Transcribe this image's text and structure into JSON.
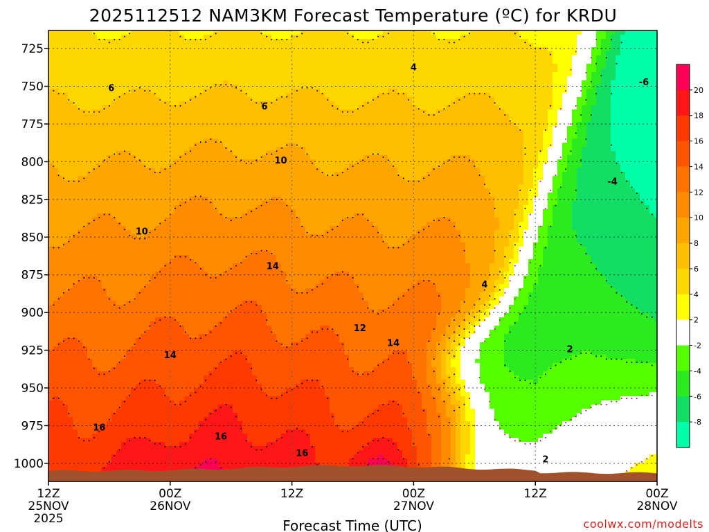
{
  "chart_data": {
    "type": "heatmap",
    "subtype": "time-height filled contour (temperature)",
    "title": "2025112512 NAM3KM Forecast Temperature (ºC) for KRDU",
    "xlabel": "Forecast Time (UTC)",
    "ylabel": "",
    "credit": "coolwx.com/modelts",
    "x_range_hours": [
      0,
      60
    ],
    "x_ticks": [
      {
        "h": 0,
        "line1": "12Z",
        "line2": "25NOV",
        "line3": "2025"
      },
      {
        "h": 12,
        "line1": "00Z",
        "line2": "26NOV",
        "line3": ""
      },
      {
        "h": 24,
        "line1": "12Z",
        "line2": "",
        "line3": ""
      },
      {
        "h": 36,
        "line1": "00Z",
        "line2": "27NOV",
        "line3": ""
      },
      {
        "h": 48,
        "line1": "12Z",
        "line2": "",
        "line3": ""
      },
      {
        "h": 60,
        "line1": "00Z",
        "line2": "28NOV",
        "line3": ""
      }
    ],
    "y_range_hpa": [
      1012,
      713
    ],
    "y_ticks": [
      "725",
      "750",
      "775",
      "800",
      "825",
      "850",
      "875",
      "900",
      "925",
      "950",
      "975",
      "1000"
    ],
    "colorbar": {
      "labels": [
        "20",
        "18",
        "16",
        "14",
        "12",
        "10",
        "8",
        "6",
        "4",
        "2",
        "-2",
        "-4",
        "-6",
        "-8"
      ],
      "levels": [
        {
          "lo": 20,
          "hi": 22,
          "color": "#ff0055"
        },
        {
          "lo": 18,
          "hi": 20,
          "color": "#ff1717"
        },
        {
          "lo": 16,
          "hi": 18,
          "color": "#ff3a00"
        },
        {
          "lo": 14,
          "hi": 16,
          "color": "#ff5500"
        },
        {
          "lo": 12,
          "hi": 14,
          "color": "#ff7300"
        },
        {
          "lo": 10,
          "hi": 12,
          "color": "#ff8c00"
        },
        {
          "lo": 8,
          "hi": 10,
          "color": "#ffa500"
        },
        {
          "lo": 6,
          "hi": 8,
          "color": "#ffbf00"
        },
        {
          "lo": 4,
          "hi": 6,
          "color": "#ffd700"
        },
        {
          "lo": 2,
          "hi": 4,
          "color": "#ffff00"
        },
        {
          "lo": -2,
          "hi": 2,
          "color": "#ffffff"
        },
        {
          "lo": -4,
          "hi": -2,
          "color": "#55ff00"
        },
        {
          "lo": -6,
          "hi": -4,
          "color": "#2bea20"
        },
        {
          "lo": -8,
          "hi": -6,
          "color": "#12dd65"
        },
        {
          "lo": -10,
          "hi": -8,
          "color": "#00ffaa"
        }
      ]
    },
    "terrain_color": "#a0522d",
    "zero_line_color": "#cc0077",
    "contour_labels": [
      {
        "t": "6",
        "h": 6.2,
        "p": 751
      },
      {
        "t": "6",
        "h": 21.3,
        "p": 763
      },
      {
        "t": "4",
        "h": 36.0,
        "p": 737
      },
      {
        "t": "10",
        "h": 22.9,
        "p": 799
      },
      {
        "t": "10",
        "h": 9.2,
        "p": 846
      },
      {
        "t": "14",
        "h": 22.1,
        "p": 869
      },
      {
        "t": "14",
        "h": 12.0,
        "p": 928
      },
      {
        "t": "14",
        "h": 34.0,
        "p": 920
      },
      {
        "t": "12",
        "h": 30.7,
        "p": 910
      },
      {
        "t": "16",
        "h": 5.0,
        "p": 976
      },
      {
        "t": "16",
        "h": 17.0,
        "p": 982
      },
      {
        "t": "16",
        "h": 25.0,
        "p": 993
      },
      {
        "t": "4",
        "h": 43.0,
        "p": 881
      },
      {
        "t": "2",
        "h": 49.0,
        "p": 997
      },
      {
        "t": "2",
        "h": 51.4,
        "p": 924
      },
      {
        "t": "-4",
        "h": 55.6,
        "p": 813
      },
      {
        "t": "-6",
        "h": 58.7,
        "p": 747
      }
    ],
    "warm_max_core": {
      "max_temp_c": 20,
      "location_h": 33.5,
      "location_p": 1000
    },
    "cold_min_core": {
      "min_temp_c": -8,
      "location_h": 59,
      "location_p": 725
    }
  }
}
